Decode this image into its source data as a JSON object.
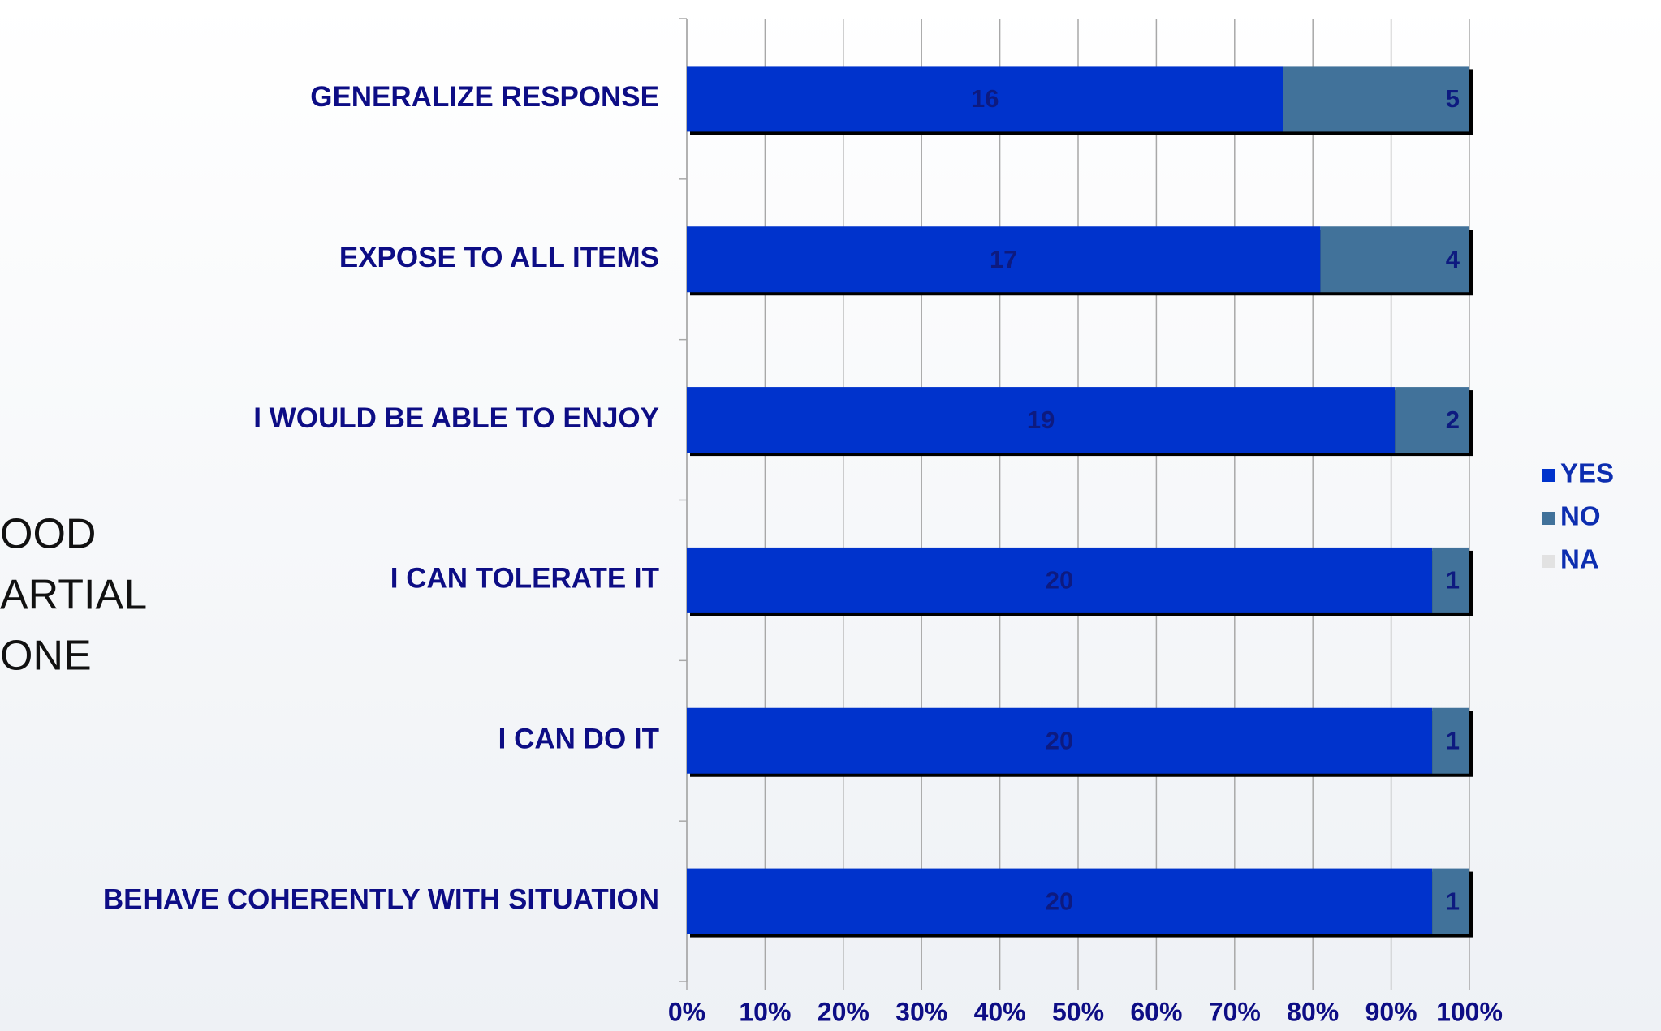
{
  "chart_data": {
    "type": "bar",
    "orientation": "horizontal",
    "stacking": "percent",
    "categories": [
      "GENERALIZE RESPONSE",
      "EXPOSE TO ALL ITEMS",
      "I WOULD BE ABLE TO ENJOY",
      "I CAN TOLERATE IT",
      "I CAN DO IT",
      "BEHAVE COHERENTLY WITH SITUATION"
    ],
    "series": [
      {
        "name": "YES",
        "color": "#0033cc",
        "values": [
          16,
          17,
          19,
          20,
          20,
          20
        ]
      },
      {
        "name": "NO",
        "color": "#41729a",
        "values": [
          5,
          4,
          2,
          1,
          1,
          1
        ]
      },
      {
        "name": "NA",
        "color": "#e2e2e2",
        "values": [
          0,
          0,
          0,
          0,
          0,
          0
        ]
      }
    ],
    "xlim": [
      0,
      100
    ],
    "xticks": [
      {
        "value": 0,
        "label": "0%"
      },
      {
        "value": 10,
        "label": "10%"
      },
      {
        "value": 20,
        "label": "20%"
      },
      {
        "value": 30,
        "label": "30%"
      },
      {
        "value": 40,
        "label": "40%"
      },
      {
        "value": 50,
        "label": "50%"
      },
      {
        "value": 60,
        "label": "60%"
      },
      {
        "value": 70,
        "label": "70%"
      },
      {
        "value": 80,
        "label": "80%"
      },
      {
        "value": 90,
        "label": "90%"
      },
      {
        "value": 100,
        "label": "100%"
      }
    ],
    "grid": true,
    "legend": "right"
  },
  "side_text": [
    "OOD",
    "ARTIAL",
    "ONE"
  ]
}
